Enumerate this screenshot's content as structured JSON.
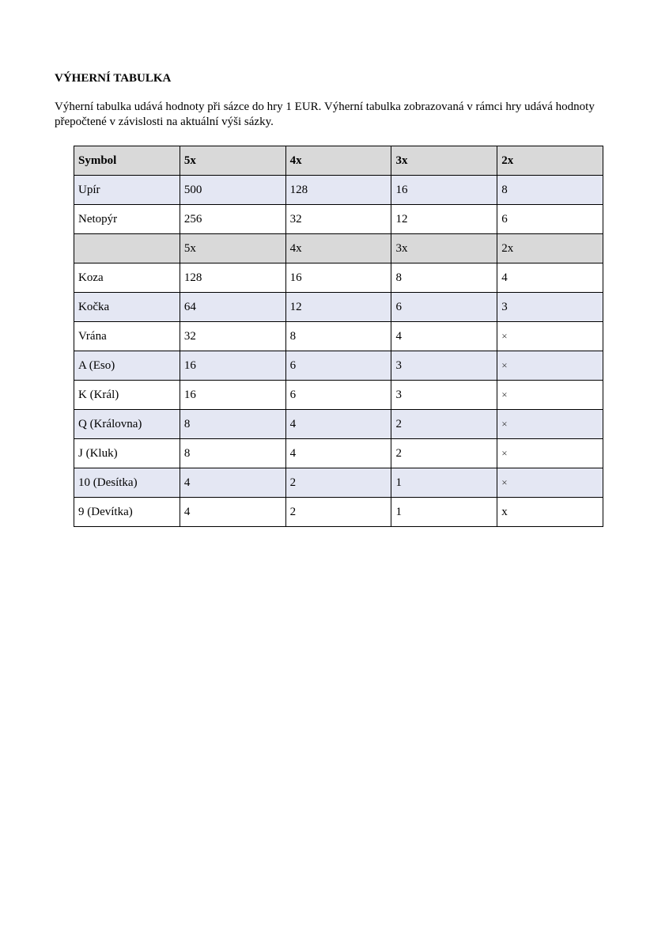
{
  "title": "VÝHERNÍ TABULKA",
  "intro": "Výherní tabulka udává hodnoty při sázce do hry 1 EUR. Výherní tabulka zobrazovaná v rámci hry udává hodnoty přepočtené v závislosti na aktuální výši sázky.",
  "table": {
    "header": [
      "Symbol",
      "5x",
      "4x",
      "3x",
      "2x"
    ],
    "rows": [
      {
        "cells": [
          "Upír",
          "500",
          "128",
          "16",
          "8"
        ],
        "style": "shade"
      },
      {
        "cells": [
          "Netopýr",
          "256",
          "32",
          "12",
          "6"
        ],
        "style": "plain"
      },
      {
        "cells": [
          "",
          "5x",
          "4x",
          "3x",
          "2x"
        ],
        "style": "head"
      },
      {
        "cells": [
          "Koza",
          "128",
          "16",
          "8",
          "4"
        ],
        "style": "plain"
      },
      {
        "cells": [
          "Kočka",
          "64",
          "12",
          "6",
          "3"
        ],
        "style": "shade"
      },
      {
        "cells": [
          "Vrána",
          "32",
          "8",
          "4",
          "×"
        ],
        "style": "plain"
      },
      {
        "cells": [
          "A (Eso)",
          "16",
          "6",
          "3",
          "×"
        ],
        "style": "shade"
      },
      {
        "cells": [
          "K (Král)",
          "16",
          "6",
          "3",
          "×"
        ],
        "style": "plain"
      },
      {
        "cells": [
          "Q (Královna)",
          "8",
          "4",
          "2",
          "×"
        ],
        "style": "shade"
      },
      {
        "cells": [
          "J (Kluk)",
          "8",
          "4",
          "2",
          "×"
        ],
        "style": "plain"
      },
      {
        "cells": [
          "10 (Desítka)",
          "4",
          "2",
          "1",
          "×"
        ],
        "style": "shade"
      },
      {
        "cells": [
          "9 (Devítka)",
          "4",
          "2",
          "1",
          "x"
        ],
        "style": "plain"
      }
    ]
  }
}
